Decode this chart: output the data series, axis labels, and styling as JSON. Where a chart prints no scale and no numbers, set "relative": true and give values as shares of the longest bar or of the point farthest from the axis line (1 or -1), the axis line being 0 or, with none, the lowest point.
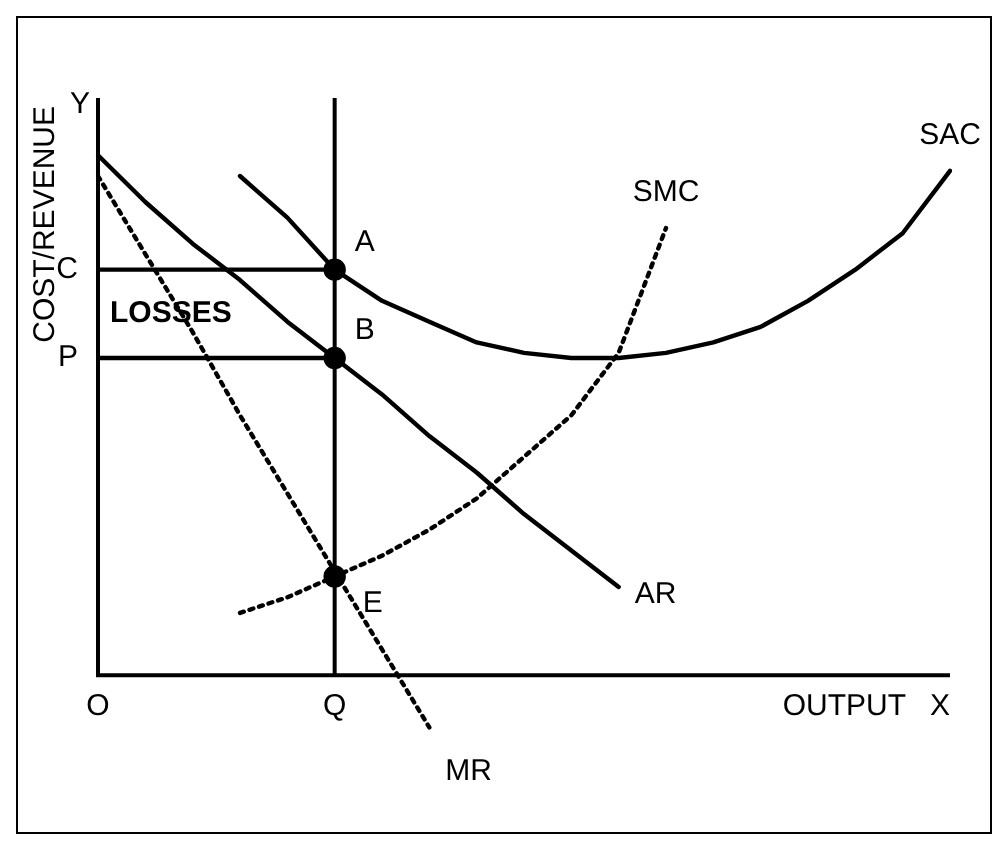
{
  "chart_data": {
    "type": "line",
    "relative": true,
    "ylabel": "COST/REVENUE",
    "xlabel": "OUTPUT",
    "categories": [
      "O",
      null,
      null,
      null,
      null,
      "Q",
      null,
      null,
      null,
      null,
      null,
      null,
      null,
      null,
      null,
      null,
      null,
      null,
      null
    ],
    "series": [
      {
        "name": "SAC",
        "color": "#000000",
        "line_style": "solid",
        "values": [
          null,
          null,
          null,
          0.96,
          0.88,
          0.78,
          0.72,
          0.68,
          0.64,
          0.62,
          0.61,
          0.61,
          0.62,
          0.64,
          0.67,
          0.72,
          0.78,
          0.85,
          0.97
        ]
      },
      {
        "name": "SMC",
        "color": "#000000",
        "line_style": "dotted",
        "values": [
          null,
          null,
          null,
          0.12,
          0.15,
          0.19,
          0.23,
          0.28,
          0.34,
          0.42,
          0.5,
          0.62,
          0.86,
          null,
          null,
          null,
          null,
          null,
          null
        ]
      },
      {
        "name": "AR",
        "color": "#000000",
        "line_style": "solid",
        "values": [
          1,
          0.91,
          0.83,
          0.76,
          0.68,
          0.61,
          0.54,
          0.46,
          0.39,
          0.31,
          0.24,
          0.17,
          null,
          null,
          null,
          null,
          null,
          null,
          null
        ]
      },
      {
        "name": "MR",
        "color": "#000000",
        "line_style": "dotted",
        "values": [
          0.96,
          0.81,
          0.66,
          0.5,
          0.35,
          0.2,
          0.05,
          -0.1,
          null,
          null,
          null,
          null,
          null,
          null,
          null,
          null,
          null,
          null,
          null
        ]
      },
      {
        "color": "#000000",
        "line_style": "solid",
        "values": [
          0.78,
          0.78,
          0.78,
          0.78,
          0.78,
          0.78,
          null,
          null,
          null,
          null,
          null,
          null,
          null,
          null,
          null,
          null,
          null,
          null,
          null
        ]
      },
      {
        "color": "#000000",
        "line_style": "solid",
        "values": [
          0.61,
          0.61,
          0.61,
          0.61,
          0.61,
          0.61,
          null,
          null,
          null,
          null,
          null,
          null,
          null,
          null,
          null,
          null,
          null,
          null,
          null
        ]
      },
      {
        "type": "scatter",
        "color": "#000000",
        "marker": "circle",
        "x": [
          "Q",
          "Q",
          "Q"
        ],
        "values": [
          0.78,
          0.61,
          0.19
        ]
      }
    ],
    "marker": "none",
    "grid": false,
    "legend": false,
    "ref_lines": [
      {
        "axis": "x",
        "value": "Q",
        "color": "#000000",
        "line_style": "solid"
      }
    ],
    "annotations": [
      "Y",
      "X",
      {
        "text": "C",
        "x": "O",
        "y": 0.78
      },
      {
        "text": "P",
        "x": "O",
        "y": 0.61
      },
      {
        "text": "LOSSES",
        "y": 0.695
      },
      {
        "text": "A",
        "x": "Q",
        "y": 0.78
      },
      {
        "text": "B",
        "x": "Q",
        "y": 0.61
      },
      {
        "text": "E",
        "x": "Q",
        "y": 0.19
      }
    ]
  }
}
